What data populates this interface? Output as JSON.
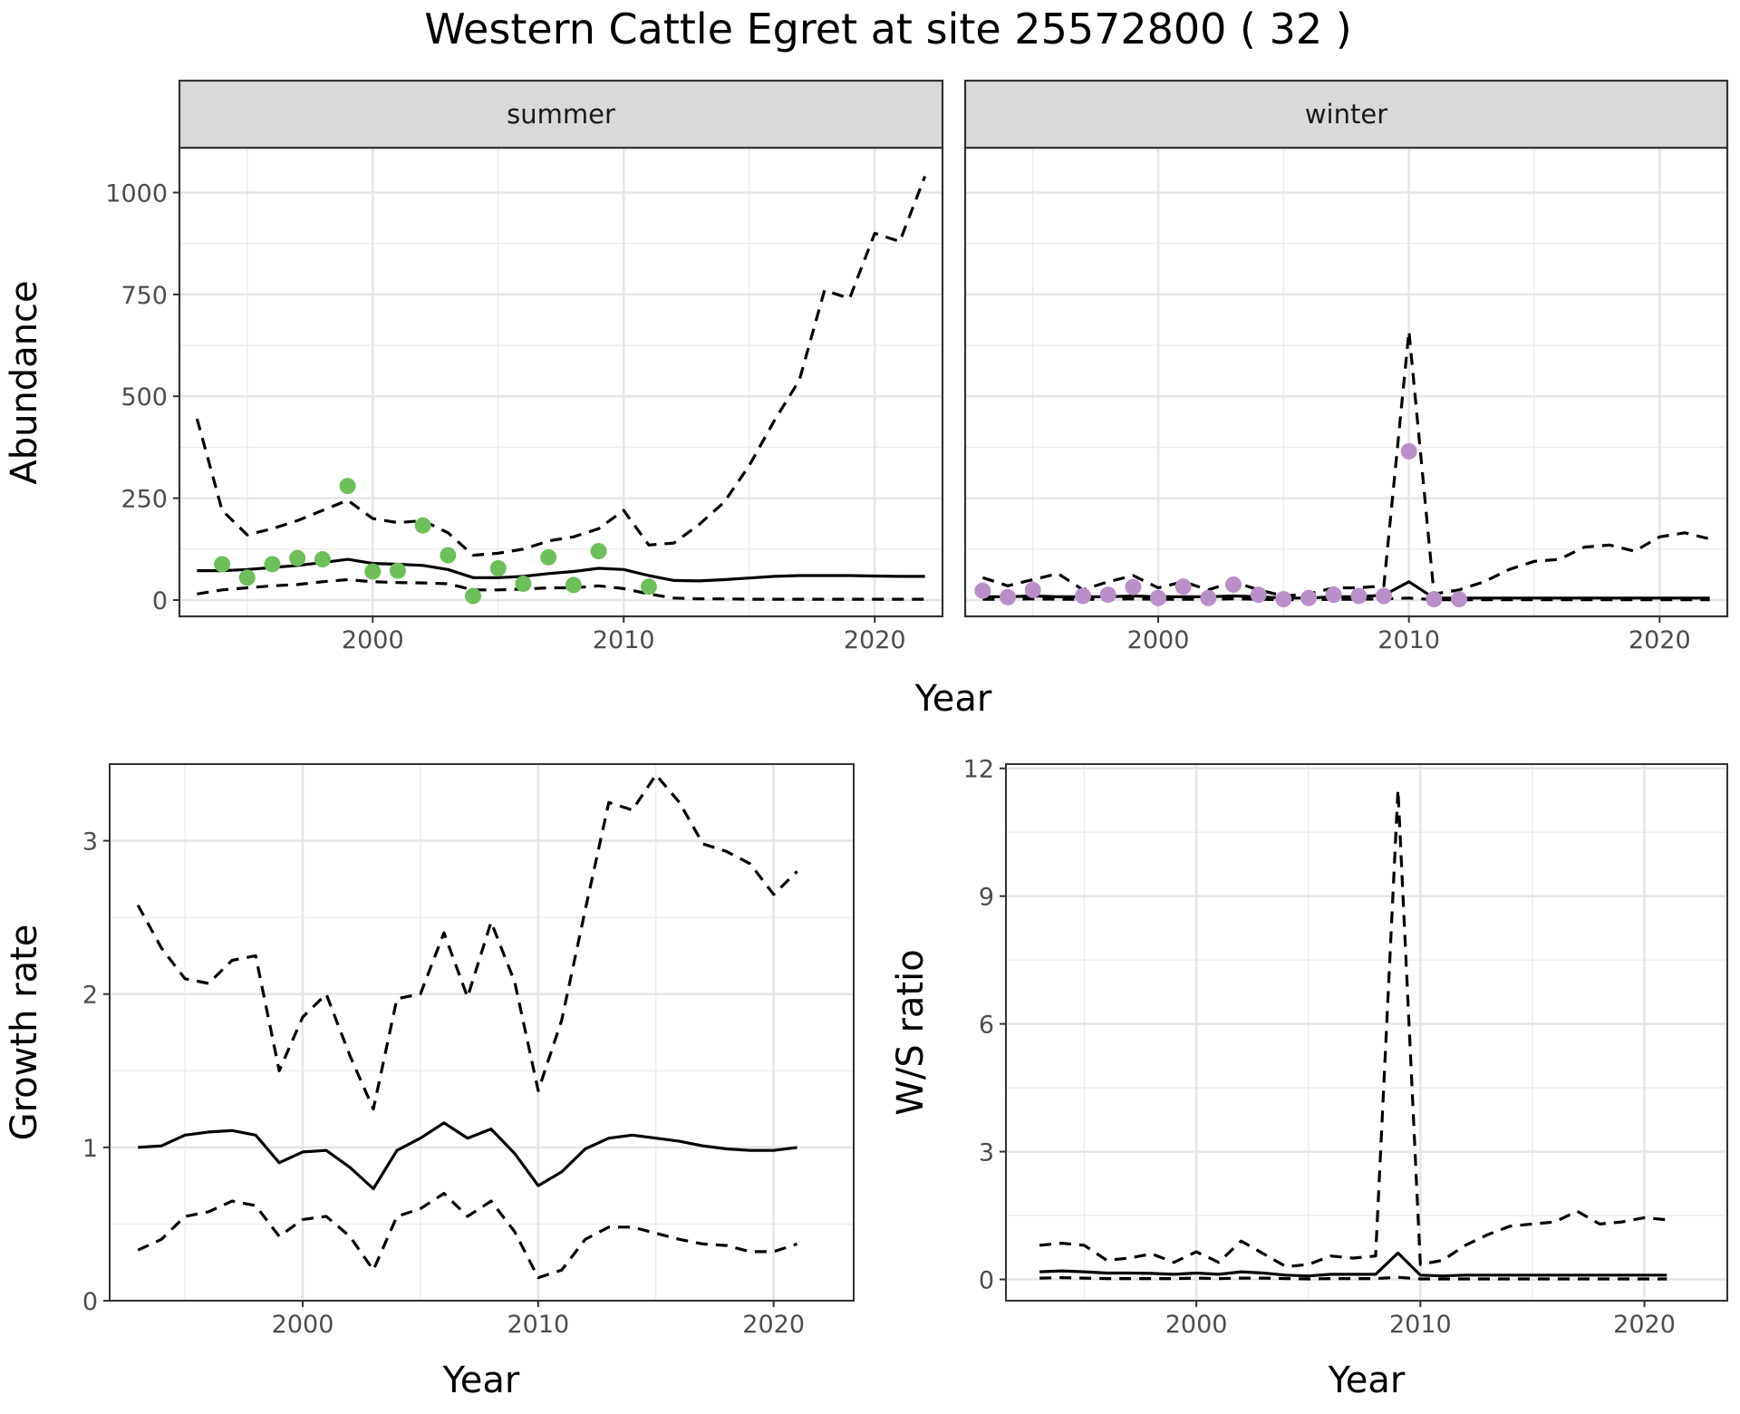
{
  "title": "Western Cattle Egret at site 25572800 ( 32 )",
  "colors": {
    "summer_points": "#6dbf5a",
    "winter_points": "#b98fca",
    "line": "#000000"
  },
  "chart_data": [
    {
      "id": "abundance",
      "type": "line",
      "facets": [
        "summer",
        "winter"
      ],
      "xlabel": "Year",
      "ylabel": "Abundance",
      "xlim": [
        1992.3,
        2022.7
      ],
      "ylim": [
        -40,
        1110
      ],
      "xticks": [
        "2000",
        "2010",
        "2020"
      ],
      "yticks": [
        "0",
        "250",
        "500",
        "750",
        "1000"
      ],
      "grid": true,
      "panels": [
        {
          "facet": "summer",
          "x": [
            1993,
            1994,
            1995,
            1996,
            1997,
            1998,
            1999,
            2000,
            2001,
            2002,
            2003,
            2004,
            2005,
            2006,
            2007,
            2008,
            2009,
            2010,
            2011,
            2012,
            2013,
            2014,
            2015,
            2016,
            2017,
            2018,
            2019,
            2020,
            2021,
            2022
          ],
          "estimate": [
            72,
            72,
            75,
            80,
            85,
            92,
            100,
            90,
            88,
            85,
            75,
            55,
            55,
            58,
            65,
            70,
            78,
            75,
            60,
            48,
            47,
            50,
            54,
            58,
            60,
            60,
            60,
            59,
            58,
            58
          ],
          "upper": [
            445,
            220,
            160,
            175,
            195,
            220,
            245,
            200,
            190,
            195,
            165,
            110,
            115,
            125,
            145,
            155,
            175,
            220,
            135,
            140,
            185,
            240,
            330,
            440,
            540,
            760,
            740,
            900,
            880,
            1040
          ],
          "lower": [
            15,
            25,
            30,
            35,
            38,
            45,
            50,
            45,
            43,
            42,
            40,
            25,
            25,
            27,
            30,
            30,
            35,
            28,
            15,
            5,
            3,
            3,
            2,
            2,
            2,
            2,
            2,
            2,
            2,
            2
          ],
          "obs_x": [
            1994,
            1995,
            1996,
            1997,
            1998,
            1999,
            2000,
            2001,
            2002,
            2003,
            2004,
            2005,
            2006,
            2007,
            2008,
            2009,
            2011
          ],
          "obs_y": [
            88,
            55,
            88,
            103,
            100,
            280,
            70,
            72,
            183,
            110,
            10,
            78,
            40,
            105,
            37,
            120,
            33
          ]
        },
        {
          "facet": "winter",
          "x": [
            1993,
            1994,
            1995,
            1996,
            1997,
            1998,
            1999,
            2000,
            2001,
            2002,
            2003,
            2004,
            2005,
            2006,
            2007,
            2008,
            2009,
            2010,
            2011,
            2012,
            2013,
            2014,
            2015,
            2016,
            2017,
            2018,
            2019,
            2020,
            2021,
            2022
          ],
          "estimate": [
            8,
            8,
            10,
            8,
            8,
            8,
            10,
            8,
            8,
            8,
            10,
            8,
            5,
            5,
            8,
            8,
            12,
            45,
            5,
            5,
            5,
            5,
            5,
            5,
            5,
            5,
            5,
            5,
            5,
            5
          ],
          "upper": [
            55,
            35,
            50,
            65,
            25,
            45,
            60,
            30,
            45,
            25,
            45,
            25,
            10,
            15,
            30,
            30,
            35,
            660,
            15,
            25,
            45,
            75,
            95,
            100,
            130,
            135,
            120,
            155,
            165,
            150
          ],
          "lower": [
            2,
            2,
            3,
            2,
            2,
            2,
            3,
            2,
            2,
            2,
            3,
            2,
            1,
            1,
            2,
            2,
            3,
            5,
            1,
            1,
            1,
            1,
            1,
            1,
            1,
            1,
            1,
            1,
            1,
            1
          ],
          "obs_x": [
            1993,
            1994,
            1995,
            1997,
            1998,
            1999,
            2000,
            2001,
            2002,
            2003,
            2004,
            2005,
            2006,
            2007,
            2008,
            2009,
            2010,
            2011,
            2012
          ],
          "obs_y": [
            23,
            7,
            25,
            10,
            13,
            32,
            5,
            33,
            5,
            38,
            13,
            2,
            5,
            13,
            10,
            10,
            365,
            2,
            2
          ]
        }
      ]
    },
    {
      "id": "growth",
      "type": "line",
      "xlabel": "Year",
      "ylabel": "Growth rate",
      "xlim": [
        1991.8,
        2023.4
      ],
      "ylim": [
        0,
        3.5
      ],
      "xticks": [
        "2000",
        "2010",
        "2020"
      ],
      "yticks": [
        "0",
        "1",
        "2",
        "3"
      ],
      "grid": true,
      "x": [
        1993,
        1994,
        1995,
        1996,
        1997,
        1998,
        1999,
        2000,
        2001,
        2002,
        2003,
        2004,
        2005,
        2006,
        2007,
        2008,
        2009,
        2010,
        2011,
        2012,
        2013,
        2014,
        2015,
        2016,
        2017,
        2018,
        2019,
        2020,
        2021
      ],
      "estimate": [
        1.0,
        1.01,
        1.08,
        1.1,
        1.11,
        1.08,
        0.9,
        0.97,
        0.98,
        0.87,
        0.73,
        0.98,
        1.06,
        1.16,
        1.06,
        1.12,
        0.96,
        0.75,
        0.84,
        0.99,
        1.06,
        1.08,
        1.06,
        1.04,
        1.01,
        0.99,
        0.98,
        0.98,
        1.0
      ],
      "upper": [
        2.58,
        2.3,
        2.1,
        2.07,
        2.22,
        2.25,
        1.5,
        1.85,
        2.0,
        1.6,
        1.25,
        1.97,
        2.0,
        2.4,
        1.98,
        2.47,
        2.08,
        1.37,
        1.83,
        2.55,
        3.25,
        3.2,
        3.43,
        3.25,
        2.98,
        2.93,
        2.85,
        2.65,
        2.8
      ],
      "lower": [
        0.33,
        0.4,
        0.55,
        0.58,
        0.65,
        0.62,
        0.42,
        0.53,
        0.55,
        0.42,
        0.2,
        0.55,
        0.6,
        0.7,
        0.55,
        0.65,
        0.45,
        0.15,
        0.2,
        0.4,
        0.48,
        0.48,
        0.44,
        0.4,
        0.37,
        0.36,
        0.32,
        0.32,
        0.37
      ]
    },
    {
      "id": "ws_ratio",
      "type": "line",
      "xlabel": "Year",
      "ylabel": "W/S ratio",
      "xlim": [
        1991.5,
        2023.7
      ],
      "ylim": [
        -0.5,
        12.1
      ],
      "xticks": [
        "2000",
        "2010",
        "2020"
      ],
      "yticks": [
        "0",
        "3",
        "6",
        "9",
        "12"
      ],
      "grid": true,
      "x": [
        1993,
        1994,
        1995,
        1996,
        1997,
        1998,
        1999,
        2000,
        2001,
        2002,
        2003,
        2004,
        2005,
        2006,
        2007,
        2008,
        2009,
        2010,
        2011,
        2012,
        2013,
        2014,
        2015,
        2016,
        2017,
        2018,
        2019,
        2020,
        2021
      ],
      "estimate": [
        0.18,
        0.2,
        0.18,
        0.15,
        0.15,
        0.14,
        0.12,
        0.15,
        0.12,
        0.18,
        0.15,
        0.1,
        0.08,
        0.12,
        0.12,
        0.12,
        0.62,
        0.1,
        0.08,
        0.1,
        0.1,
        0.1,
        0.1,
        0.1,
        0.1,
        0.1,
        0.1,
        0.1,
        0.1
      ],
      "upper": [
        0.8,
        0.85,
        0.8,
        0.45,
        0.5,
        0.6,
        0.4,
        0.65,
        0.4,
        0.9,
        0.6,
        0.3,
        0.35,
        0.55,
        0.5,
        0.55,
        11.5,
        0.35,
        0.45,
        0.8,
        1.05,
        1.25,
        1.3,
        1.35,
        1.6,
        1.3,
        1.35,
        1.45,
        1.4
      ],
      "lower": [
        0.03,
        0.04,
        0.03,
        0.02,
        0.02,
        0.02,
        0.02,
        0.03,
        0.02,
        0.03,
        0.03,
        0.02,
        0.01,
        0.02,
        0.02,
        0.02,
        0.05,
        0.01,
        0.01,
        0.01,
        0.01,
        0.01,
        0.01,
        0.01,
        0.01,
        0.01,
        0.01,
        0.01,
        0.01
      ]
    }
  ]
}
